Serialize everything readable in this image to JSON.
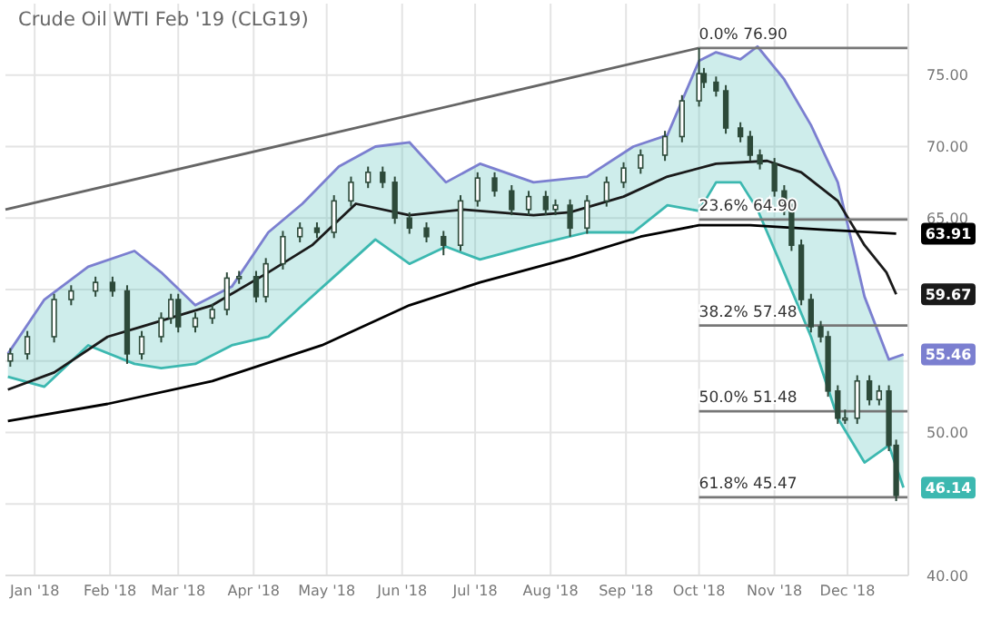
{
  "chart_data": {
    "type": "candlestick",
    "title": "Crude Oil WTI Feb '19 (CLG19)",
    "color": "#2d4a3a",
    "x": [
      "2017-12-22",
      "2017-12-29",
      "2018-01-09",
      "2018-01-16",
      "2018-01-26",
      "2018-02-02",
      "2018-02-08",
      "2018-02-14",
      "2018-02-22",
      "2018-02-26",
      "2018-03-01",
      "2018-03-08",
      "2018-03-15",
      "2018-03-21",
      "2018-03-26",
      "2018-04-02",
      "2018-04-06",
      "2018-04-13",
      "2018-04-20",
      "2018-04-27",
      "2018-05-04",
      "2018-05-11",
      "2018-05-18",
      "2018-05-24",
      "2018-05-29",
      "2018-06-04",
      "2018-06-11",
      "2018-06-18",
      "2018-06-25",
      "2018-07-02",
      "2018-07-09",
      "2018-07-16",
      "2018-07-23",
      "2018-07-30",
      "2018-08-03",
      "2018-08-09",
      "2018-08-16",
      "2018-08-24",
      "2018-08-31",
      "2018-09-07",
      "2018-09-17",
      "2018-09-24",
      "2018-10-01",
      "2018-10-03",
      "2018-10-08",
      "2018-10-12",
      "2018-10-18",
      "2018-10-22",
      "2018-10-26",
      "2018-11-01",
      "2018-11-05",
      "2018-11-08",
      "2018-11-12",
      "2018-11-16",
      "2018-11-20",
      "2018-11-23",
      "2018-11-27",
      "2018-11-30",
      "2018-12-05",
      "2018-12-10",
      "2018-12-14",
      "2018-12-18",
      "2018-12-21"
    ],
    "ohlc": [
      [
        55.0,
        55.9,
        54.6,
        55.5
      ],
      [
        55.5,
        57.1,
        55.1,
        56.7
      ],
      [
        56.7,
        59.7,
        56.3,
        59.3
      ],
      [
        59.3,
        60.3,
        58.9,
        59.9
      ],
      [
        59.9,
        60.9,
        59.5,
        60.5
      ],
      [
        60.5,
        60.9,
        59.5,
        59.9
      ],
      [
        59.9,
        60.3,
        54.8,
        55.5
      ],
      [
        55.5,
        57.1,
        55.1,
        56.7
      ],
      [
        56.7,
        58.4,
        56.3,
        58.0
      ],
      [
        58.0,
        59.7,
        57.6,
        59.3
      ],
      [
        59.3,
        59.7,
        57.0,
        57.4
      ],
      [
        57.4,
        58.4,
        57.0,
        58.0
      ],
      [
        58.0,
        59.0,
        57.6,
        58.6
      ],
      [
        58.6,
        61.2,
        58.2,
        60.8
      ],
      [
        60.8,
        61.3,
        60.4,
        60.9
      ],
      [
        60.9,
        61.3,
        59.1,
        59.5
      ],
      [
        59.5,
        62.2,
        59.1,
        61.8
      ],
      [
        61.8,
        64.1,
        61.4,
        63.7
      ],
      [
        63.7,
        64.7,
        63.3,
        64.3
      ],
      [
        64.3,
        64.7,
        63.6,
        64.0
      ],
      [
        64.0,
        66.6,
        63.6,
        66.2
      ],
      [
        66.2,
        67.9,
        65.8,
        67.5
      ],
      [
        67.5,
        68.6,
        67.1,
        68.2
      ],
      [
        68.2,
        68.6,
        67.1,
        67.5
      ],
      [
        67.5,
        67.9,
        64.6,
        65.0
      ],
      [
        65.0,
        65.4,
        63.9,
        64.3
      ],
      [
        64.3,
        64.7,
        63.3,
        63.7
      ],
      [
        63.7,
        64.1,
        62.4,
        63.1
      ],
      [
        63.1,
        66.6,
        62.7,
        66.2
      ],
      [
        66.2,
        68.2,
        65.8,
        67.8
      ],
      [
        67.8,
        68.2,
        66.5,
        66.9
      ],
      [
        66.9,
        67.3,
        65.2,
        65.6
      ],
      [
        65.6,
        66.9,
        65.2,
        66.5
      ],
      [
        66.5,
        66.9,
        65.2,
        65.6
      ],
      [
        65.6,
        66.3,
        65.2,
        65.9
      ],
      [
        65.9,
        66.3,
        63.7,
        64.3
      ],
      [
        64.3,
        66.6,
        63.9,
        66.2
      ],
      [
        66.2,
        67.9,
        65.8,
        67.5
      ],
      [
        67.5,
        68.9,
        67.1,
        68.5
      ],
      [
        68.5,
        69.8,
        68.1,
        69.4
      ],
      [
        69.4,
        71.1,
        69.0,
        70.7
      ],
      [
        70.7,
        73.6,
        70.3,
        73.2
      ],
      [
        73.2,
        76.9,
        72.8,
        75.1
      ],
      [
        75.1,
        75.5,
        74.1,
        74.5
      ],
      [
        74.5,
        74.9,
        73.5,
        73.9
      ],
      [
        73.9,
        74.3,
        70.9,
        71.3
      ],
      [
        71.3,
        71.7,
        70.3,
        70.7
      ],
      [
        70.7,
        71.1,
        69.0,
        69.4
      ],
      [
        69.4,
        69.8,
        68.4,
        68.8
      ],
      [
        68.8,
        69.2,
        66.5,
        66.9
      ],
      [
        66.9,
        67.3,
        65.2,
        65.6
      ],
      [
        65.6,
        66.0,
        62.7,
        63.1
      ],
      [
        63.1,
        63.5,
        58.9,
        59.3
      ],
      [
        59.3,
        59.7,
        57.0,
        57.4
      ],
      [
        57.4,
        57.8,
        56.3,
        56.7
      ],
      [
        56.7,
        57.1,
        52.5,
        52.9
      ],
      [
        52.9,
        53.3,
        50.6,
        51.0
      ],
      [
        51.0,
        51.6,
        50.6,
        51.0
      ],
      [
        51.0,
        54.0,
        50.6,
        53.6
      ],
      [
        53.6,
        54.0,
        51.9,
        52.3
      ],
      [
        52.3,
        53.3,
        51.9,
        52.9
      ],
      [
        52.9,
        53.3,
        48.7,
        49.1
      ],
      [
        49.1,
        49.5,
        45.2,
        45.6
      ]
    ],
    "series": [
      {
        "type": "line",
        "color": "#7b7fd0",
        "x": [
          "2017-12-21",
          "2018-01-05",
          "2018-01-23",
          "2018-02-11",
          "2018-02-22",
          "2018-03-08",
          "2018-03-23",
          "2018-04-07",
          "2018-04-21",
          "2018-05-06",
          "2018-05-21",
          "2018-06-04",
          "2018-06-19",
          "2018-07-03",
          "2018-07-25",
          "2018-08-16",
          "2018-09-04",
          "2018-09-18",
          "2018-10-01",
          "2018-10-08",
          "2018-10-18",
          "2018-10-25",
          "2018-11-05",
          "2018-11-16",
          "2018-11-27",
          "2018-12-08",
          "2018-12-18",
          "2018-12-24"
        ],
        "values": [
          55.5,
          59.3,
          61.6,
          62.7,
          61.2,
          58.9,
          60.2,
          64.0,
          66.0,
          68.6,
          70.0,
          70.3,
          67.5,
          68.8,
          67.5,
          67.9,
          70.0,
          70.8,
          76.0,
          76.6,
          76.1,
          77.0,
          74.7,
          71.5,
          67.5,
          59.5,
          55.1,
          55.46
        ]
      },
      {
        "type": "line",
        "color": "#3cb8b0",
        "x": [
          "2017-12-21",
          "2018-01-05",
          "2018-01-23",
          "2018-02-11",
          "2018-02-22",
          "2018-03-08",
          "2018-03-23",
          "2018-04-07",
          "2018-04-21",
          "2018-05-06",
          "2018-05-21",
          "2018-06-04",
          "2018-06-19",
          "2018-07-03",
          "2018-07-25",
          "2018-08-16",
          "2018-09-04",
          "2018-09-18",
          "2018-10-01",
          "2018-10-08",
          "2018-10-18",
          "2018-10-25",
          "2018-11-05",
          "2018-11-16",
          "2018-11-27",
          "2018-12-08",
          "2018-12-18",
          "2018-12-24"
        ],
        "values": [
          53.9,
          53.2,
          56.1,
          54.8,
          54.5,
          54.8,
          56.1,
          56.7,
          58.9,
          61.2,
          63.5,
          61.8,
          63.0,
          62.1,
          63.1,
          64.0,
          64.0,
          65.9,
          65.5,
          67.5,
          67.5,
          65.6,
          61.2,
          56.7,
          51.0,
          47.9,
          49.1,
          46.14
        ],
        "lower": [
          53.9,
          53.2,
          56.1,
          54.8,
          54.5,
          54.8,
          56.1,
          56.7,
          58.9,
          61.2,
          63.5,
          61.8,
          63.0,
          62.1,
          63.1,
          64.0,
          64.0,
          65.9,
          65.5,
          67.5,
          67.5,
          65.6,
          61.2,
          56.7,
          51.0,
          47.9,
          49.1,
          46.14
        ],
        "upper": [
          55.5,
          59.3,
          61.6,
          62.7,
          61.2,
          58.9,
          60.2,
          64.0,
          66.0,
          68.6,
          70.0,
          70.3,
          67.5,
          68.8,
          67.5,
          67.9,
          70.0,
          70.8,
          76.0,
          76.6,
          76.1,
          77.0,
          74.7,
          71.5,
          67.5,
          59.5,
          55.1,
          55.46
        ]
      },
      {
        "type": "line",
        "color": "#1a1a1a",
        "x": [
          "2017-12-21",
          "2018-01-09",
          "2018-01-31",
          "2018-02-14",
          "2018-03-15",
          "2018-04-07",
          "2018-04-25",
          "2018-05-13",
          "2018-06-04",
          "2018-06-26",
          "2018-07-25",
          "2018-08-09",
          "2018-08-31",
          "2018-09-18",
          "2018-10-08",
          "2018-10-29",
          "2018-11-12",
          "2018-11-27",
          "2018-12-08",
          "2018-12-17",
          "2018-12-21"
        ],
        "values": [
          53.0,
          54.2,
          56.7,
          57.4,
          58.9,
          61.2,
          63.1,
          66.0,
          65.2,
          65.6,
          65.2,
          65.4,
          66.5,
          67.9,
          68.8,
          69.0,
          68.2,
          66.2,
          63.1,
          61.2,
          59.67
        ]
      },
      {
        "type": "line",
        "color": "#000000",
        "x": [
          "2017-12-21",
          "2018-01-31",
          "2018-03-15",
          "2018-04-29",
          "2018-06-04",
          "2018-07-03",
          "2018-08-09",
          "2018-09-07",
          "2018-10-01",
          "2018-10-22",
          "2018-11-20",
          "2018-12-21"
        ],
        "values": [
          50.8,
          52.0,
          53.6,
          56.1,
          58.9,
          60.5,
          62.2,
          63.7,
          64.5,
          64.5,
          64.2,
          63.91
        ]
      },
      {
        "type": "line",
        "color": "#666666",
        "x": [
          "2017-12-20",
          "2018-10-01"
        ],
        "values": [
          65.6,
          76.9
        ]
      },
      {
        "type": "line",
        "color": "#777777",
        "x": [
          "2018-10-01",
          "2018-12-26"
        ],
        "values": [
          76.9,
          76.9
        ]
      },
      {
        "type": "line",
        "color": "#777777",
        "x": [
          "2018-10-01",
          "2018-12-26"
        ],
        "values": [
          64.9,
          64.9
        ]
      },
      {
        "type": "line",
        "color": "#777777",
        "x": [
          "2018-10-01",
          "2018-12-26"
        ],
        "values": [
          57.48,
          57.48
        ]
      },
      {
        "type": "line",
        "color": "#777777",
        "x": [
          "2018-10-01",
          "2018-12-26"
        ],
        "values": [
          51.48,
          51.48
        ]
      },
      {
        "type": "line",
        "color": "#777777",
        "x": [
          "2018-10-01",
          "2018-12-26"
        ],
        "values": [
          45.47,
          45.47
        ]
      }
    ],
    "annotations": [
      {
        "text": "0.0% 76.90",
        "x": "2018-10-01",
        "y": 76.9
      },
      {
        "text": "23.6% 64.90",
        "x": "2018-10-01",
        "y": 64.9
      },
      {
        "text": "38.2% 57.48",
        "x": "2018-10-01",
        "y": 57.48
      },
      {
        "text": "50.0% 51.48",
        "x": "2018-10-01",
        "y": 51.48
      },
      {
        "text": "61.8% 45.47",
        "x": "2018-10-01",
        "y": 45.47
      },
      {
        "text": "63.91",
        "x": "2018-12-21",
        "y": 63.91
      },
      {
        "text": "59.67",
        "x": "2018-12-21",
        "y": 59.67
      },
      {
        "text": "55.46",
        "x": "2018-12-21",
        "y": 55.46
      },
      {
        "text": "46.14",
        "x": "2018-12-21",
        "y": 46.14
      }
    ],
    "xlim": [
      "2017-12-20",
      "2018-12-26"
    ],
    "xticks": [
      {
        "value": "2018-01-01",
        "label": "Jan '18"
      },
      {
        "value": "2018-02-01",
        "label": "Feb '18"
      },
      {
        "value": "2018-03-01",
        "label": "Mar '18"
      },
      {
        "value": "2018-04-01",
        "label": "Apr '18"
      },
      {
        "value": "2018-05-01",
        "label": "May '18"
      },
      {
        "value": "2018-06-01",
        "label": "Jun '18"
      },
      {
        "value": "2018-07-01",
        "label": "Jul '18"
      },
      {
        "value": "2018-08-01",
        "label": "Aug '18"
      },
      {
        "value": "2018-09-01",
        "label": "Sep '18"
      },
      {
        "value": "2018-10-01",
        "label": "Oct '18"
      },
      {
        "value": "2018-11-01",
        "label": "Nov '18"
      },
      {
        "value": "2018-12-01",
        "label": "Dec '18"
      }
    ],
    "ylim": [
      40,
      80
    ],
    "yticks": [
      {
        "value": 40,
        "label": "40.00"
      },
      {
        "value": 45,
        "label": null
      },
      {
        "value": 50,
        "label": "50.00"
      },
      {
        "value": 55,
        "label": null
      },
      {
        "value": 60,
        "label": null
      },
      {
        "value": 65,
        "label": "65.00"
      },
      {
        "value": 70,
        "label": "70.00"
      },
      {
        "value": 75,
        "label": "75.00"
      }
    ],
    "grid": true
  }
}
